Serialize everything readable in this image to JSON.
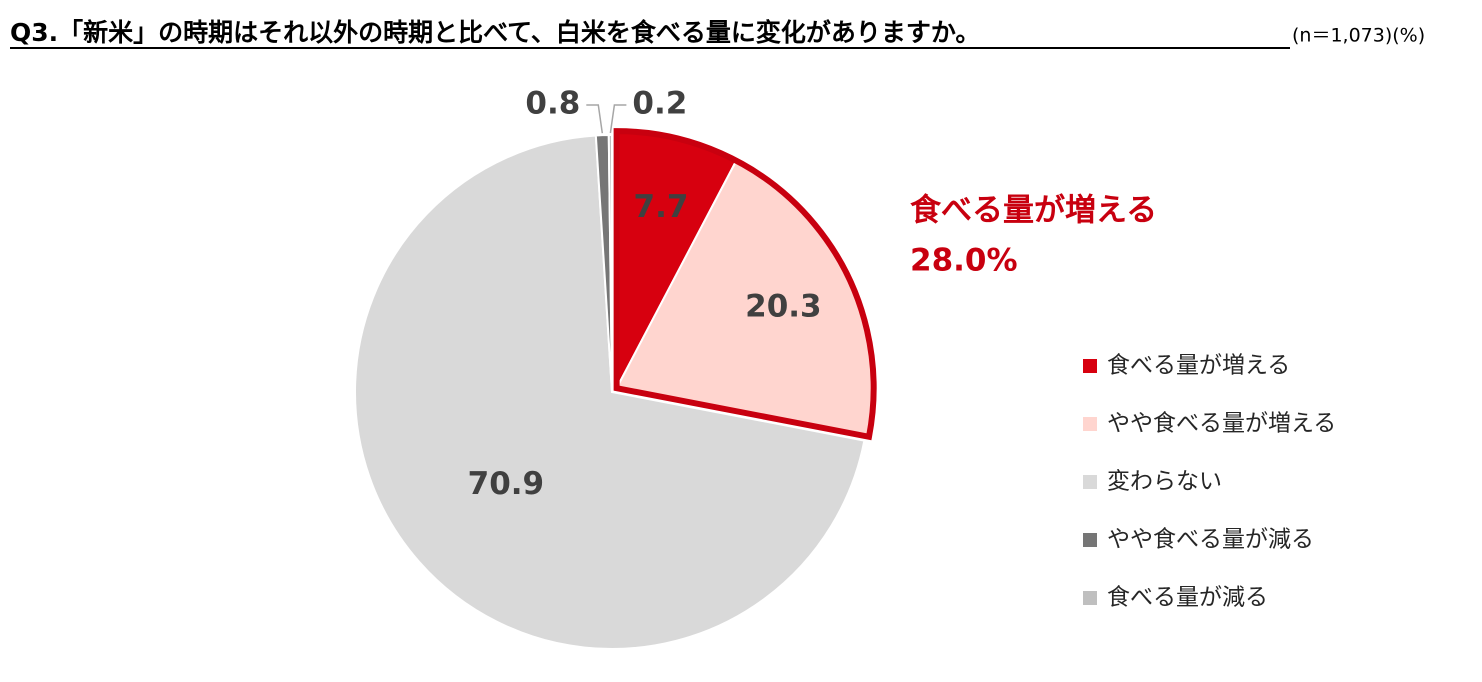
{
  "chart_data": {
    "type": "pie",
    "title": "Q3.「新米」の時期はそれ以外の時期と比べて、白米を食べる量に変化がありますか。",
    "subtitle": "(n＝1,073)(%)",
    "categories": [
      "食べる量が増える",
      "やや食べる量が増える",
      "変わらない",
      "やや食べる量が減る",
      "食べる量が減る"
    ],
    "values": [
      7.7,
      20.3,
      70.9,
      0.8,
      0.2
    ],
    "colors": [
      "#d7000f",
      "#ffd5cf",
      "#d9d9d9",
      "#767676",
      "#bfbfbf"
    ],
    "annotation": {
      "label": "食べる量が増える",
      "value": 28.0,
      "value_label": "28.0%"
    },
    "legend": "right"
  }
}
